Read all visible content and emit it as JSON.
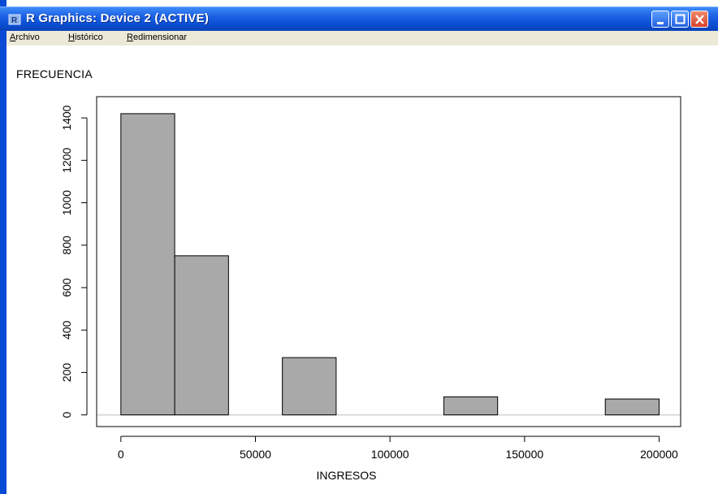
{
  "window": {
    "title": "R Graphics: Device 2 (ACTIVE)",
    "buttons": {
      "minimize": "minimize-icon",
      "maximize": "maximize-icon",
      "close": "close-icon"
    }
  },
  "menubar": {
    "items": [
      "Archivo",
      "Histórico",
      "Redimensionar"
    ]
  },
  "chart_data": {
    "type": "bar",
    "ylabel": "FRECUENCIA",
    "xlabel": "INGRESOS",
    "bins": [
      {
        "x0": 0,
        "x1": 20000,
        "count": 1420
      },
      {
        "x0": 20000,
        "x1": 40000,
        "count": 750
      },
      {
        "x0": 60000,
        "x1": 80000,
        "count": 270
      },
      {
        "x0": 120000,
        "x1": 140000,
        "count": 85
      },
      {
        "x0": 180000,
        "x1": 200000,
        "count": 75
      }
    ],
    "xticks": [
      0,
      50000,
      100000,
      150000,
      200000
    ],
    "yticks": [
      0,
      200,
      400,
      600,
      800,
      1000,
      1200,
      1400
    ],
    "xlim": [
      -9000,
      208000
    ],
    "ylim": [
      -55,
      1500
    ],
    "bar_color": "#a9a9a9",
    "grid": false
  }
}
